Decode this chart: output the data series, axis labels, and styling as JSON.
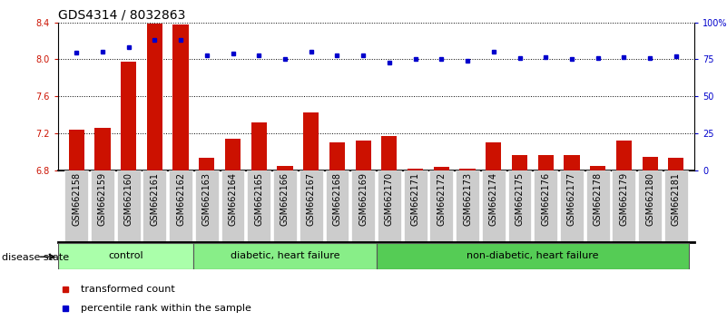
{
  "title": "GDS4314 / 8032863",
  "samples": [
    "GSM662158",
    "GSM662159",
    "GSM662160",
    "GSM662161",
    "GSM662162",
    "GSM662163",
    "GSM662164",
    "GSM662165",
    "GSM662166",
    "GSM662167",
    "GSM662168",
    "GSM662169",
    "GSM662170",
    "GSM662171",
    "GSM662172",
    "GSM662173",
    "GSM662174",
    "GSM662175",
    "GSM662176",
    "GSM662177",
    "GSM662178",
    "GSM662179",
    "GSM662180",
    "GSM662181"
  ],
  "red_values": [
    7.24,
    7.26,
    7.98,
    8.39,
    8.38,
    6.93,
    7.14,
    7.32,
    6.85,
    7.43,
    7.1,
    7.12,
    7.17,
    6.82,
    6.84,
    6.82,
    7.1,
    6.96,
    6.96,
    6.96,
    6.85,
    7.12,
    6.94,
    6.93
  ],
  "blue_values": [
    79.5,
    80.5,
    83.5,
    88.0,
    88.5,
    77.5,
    79.0,
    78.0,
    75.5,
    80.0,
    77.5,
    77.5,
    73.0,
    75.0,
    75.5,
    74.0,
    80.0,
    76.0,
    76.5,
    75.5,
    76.0,
    76.5,
    76.0,
    77.0
  ],
  "groups": [
    {
      "label": "control",
      "start": 0,
      "end": 5,
      "color": "#aaffaa"
    },
    {
      "label": "diabetic, heart failure",
      "start": 5,
      "end": 12,
      "color": "#88ee88"
    },
    {
      "label": "non-diabetic, heart failure",
      "start": 12,
      "end": 24,
      "color": "#55cc55"
    }
  ],
  "ylim_left": [
    6.8,
    8.4
  ],
  "ylim_right": [
    0,
    100
  ],
  "yticks_left": [
    6.8,
    7.2,
    7.6,
    8.0,
    8.4
  ],
  "yticks_right": [
    0,
    25,
    50,
    75,
    100
  ],
  "ytick_labels_right": [
    "0",
    "25",
    "50",
    "75",
    "100%"
  ],
  "bar_color": "#cc1100",
  "dot_color": "#0000cc",
  "tick_area_color": "#cccccc",
  "legend_red": "transformed count",
  "legend_blue": "percentile rank within the sample",
  "disease_state_label": "disease state",
  "title_fontsize": 10,
  "tick_fontsize": 7
}
